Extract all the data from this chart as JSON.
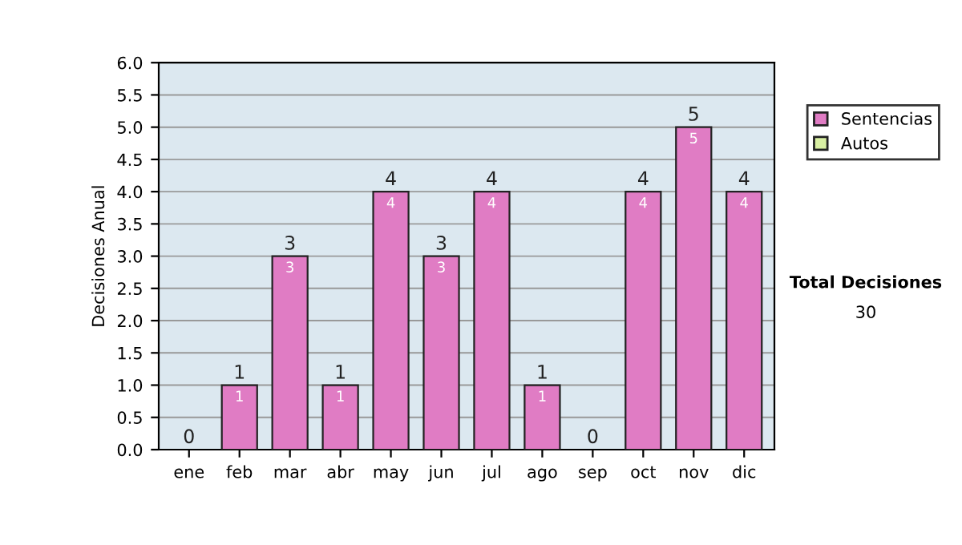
{
  "chart_data": {
    "type": "bar",
    "ylabel": "Decisiones Anual",
    "categories": [
      "ene",
      "feb",
      "mar",
      "abr",
      "may",
      "jun",
      "jul",
      "ago",
      "sep",
      "oct",
      "nov",
      "dic"
    ],
    "stacked": true,
    "series": [
      {
        "name": "Sentencias",
        "color": "#e07cc4",
        "values": [
          0,
          1,
          3,
          1,
          4,
          3,
          4,
          1,
          0,
          4,
          5,
          4
        ],
        "value_labels": [
          null,
          "1",
          "3",
          "1",
          "4",
          "3",
          "4",
          "1",
          null,
          "4",
          "5",
          "4"
        ]
      },
      {
        "name": "Autos",
        "color": "#d9f0a3",
        "values": [
          0,
          0,
          0,
          0,
          0,
          0,
          0,
          0,
          0,
          0,
          0,
          0
        ]
      }
    ],
    "totals": [
      "0",
      "1",
      "3",
      "1",
      "4",
      "3",
      "4",
      "1",
      "0",
      "4",
      "5",
      "4"
    ],
    "ylim": [
      0,
      6
    ],
    "yticks": [
      "0.0",
      "0.5",
      "1.0",
      "1.5",
      "2.0",
      "2.5",
      "3.0",
      "3.5",
      "4.0",
      "4.5",
      "5.0",
      "5.5",
      "6.0"
    ],
    "grid": "y",
    "legend": "right",
    "annotations": [
      "Total Decisiones",
      "30"
    ]
  }
}
